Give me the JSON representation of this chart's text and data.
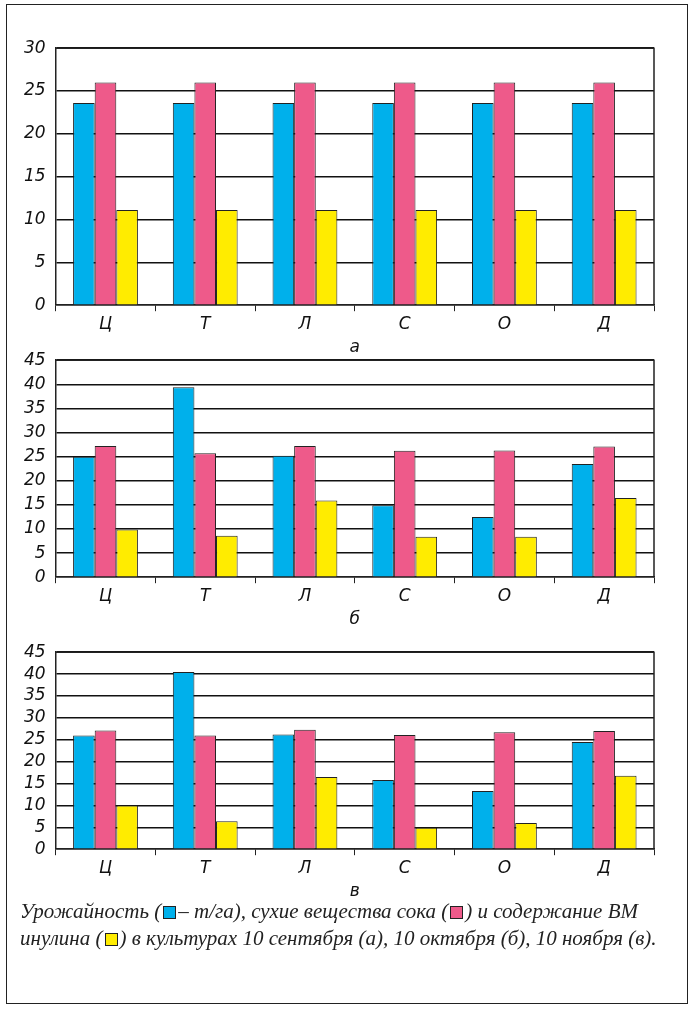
{
  "chart_data": [
    {
      "type": "bar",
      "xlabel": "а",
      "categories": [
        "Ц",
        "Т",
        "Л",
        "С",
        "О",
        "Д"
      ],
      "series": [
        {
          "color": "#00b0eb",
          "values": [
            23.6,
            23.6,
            23.6,
            23.6,
            23.6,
            23.6
          ]
        },
        {
          "color": "#ee5a8a",
          "values": [
            26,
            26,
            26,
            26,
            26,
            26
          ]
        },
        {
          "color": "#ffec00",
          "values": [
            11.1,
            11.1,
            11.1,
            11.1,
            11.1,
            11.1
          ]
        }
      ],
      "ylim": [
        0,
        30
      ],
      "yticks": [
        0,
        5,
        10,
        15,
        20,
        25,
        30
      ],
      "grid": "y",
      "legend": false
    },
    {
      "type": "bar",
      "xlabel": "б",
      "categories": [
        "Ц",
        "Т",
        "Л",
        "С",
        "О",
        "Д"
      ],
      "series": [
        {
          "color": "#00b0eb",
          "values": [
            25,
            39.4,
            25.2,
            14.9,
            12.5,
            23.5
          ]
        },
        {
          "color": "#ee5a8a",
          "values": [
            27.2,
            25.7,
            27.2,
            26.2,
            26.3,
            27.1
          ]
        },
        {
          "color": "#ffec00",
          "values": [
            9.9,
            8.6,
            15.9,
            8.4,
            8.4,
            16.4
          ]
        }
      ],
      "ylim": [
        0,
        45
      ],
      "yticks": [
        0,
        5,
        10,
        15,
        20,
        25,
        30,
        35,
        40,
        45
      ],
      "grid": "y",
      "legend": false
    },
    {
      "type": "bar",
      "xlabel": "в",
      "categories": [
        "Ц",
        "Т",
        "Л",
        "С",
        "О",
        "Д"
      ],
      "series": [
        {
          "color": "#00b0eb",
          "values": [
            26,
            40.5,
            26.2,
            15.8,
            13.3,
            24.5
          ]
        },
        {
          "color": "#ee5a8a",
          "values": [
            27.1,
            26,
            27.3,
            26.1,
            26.7,
            27
          ]
        },
        {
          "color": "#ffec00",
          "values": [
            10,
            6.4,
            16.5,
            4.9,
            6,
            16.8
          ]
        }
      ],
      "ylim": [
        0,
        45
      ],
      "yticks": [
        0,
        5,
        10,
        15,
        20,
        25,
        30,
        35,
        40,
        45
      ],
      "grid": "y",
      "legend": false,
      "annotations": [
        "Урожайность (",
        "– т/га), сухие вещества сока (",
        ") и содержание ВМ инулина (",
        ") в культурах 10 сентября (а), 10 октября (б), 10 ноября (в)."
      ]
    }
  ]
}
